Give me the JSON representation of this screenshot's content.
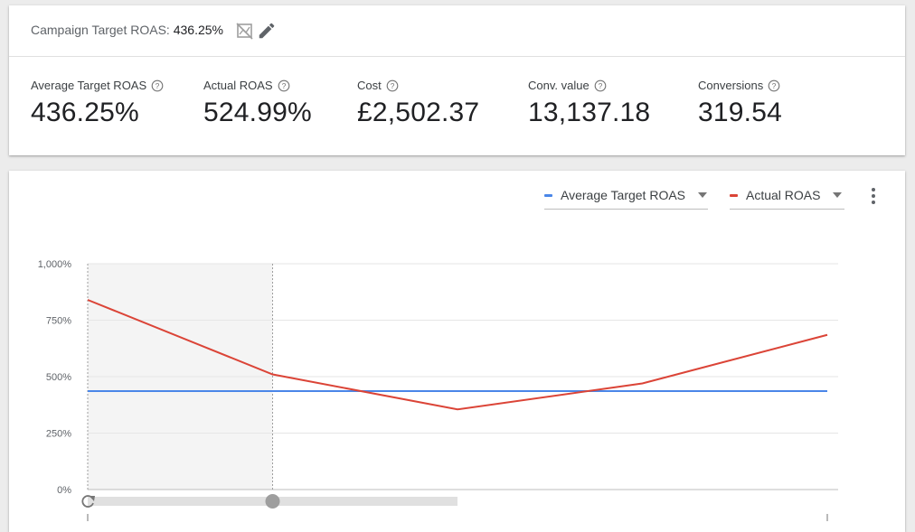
{
  "summary": {
    "campaign_target_label": "Campaign Target ROAS:",
    "campaign_target_value": "436.25%",
    "icons": [
      "no-chart-icon",
      "pencil-icon"
    ],
    "metrics": [
      {
        "label": "Average Target ROAS",
        "value": "436.25%"
      },
      {
        "label": "Actual ROAS",
        "value": "524.99%"
      },
      {
        "label": "Cost",
        "value": "£2,502.37"
      },
      {
        "label": "Conv. value",
        "value": "13,137.18"
      },
      {
        "label": "Conversions",
        "value": "319.54"
      }
    ]
  },
  "chart": {
    "legend": [
      {
        "label": "Average Target ROAS",
        "color": "#4a86e8"
      },
      {
        "label": "Actual ROAS",
        "color": "#db4437"
      }
    ],
    "more_icon": "more-vert-icon"
  },
  "chart_data": {
    "type": "line",
    "yticks": [
      "1,000%",
      "750%",
      "500%",
      "250%",
      "0%"
    ],
    "ylim": [
      0,
      1000
    ],
    "grid": true,
    "x": [
      0,
      1,
      2,
      3,
      4
    ],
    "series": [
      {
        "name": "Average Target ROAS",
        "color": "#4a86e8",
        "values": [
          436.25,
          436.25,
          436.25,
          436.25,
          436.25
        ]
      },
      {
        "name": "Actual ROAS",
        "color": "#db4437",
        "values": [
          840,
          510,
          355,
          470,
          685
        ]
      }
    ],
    "highlight_range": [
      0,
      1
    ],
    "scrubber_position": 0.5
  }
}
